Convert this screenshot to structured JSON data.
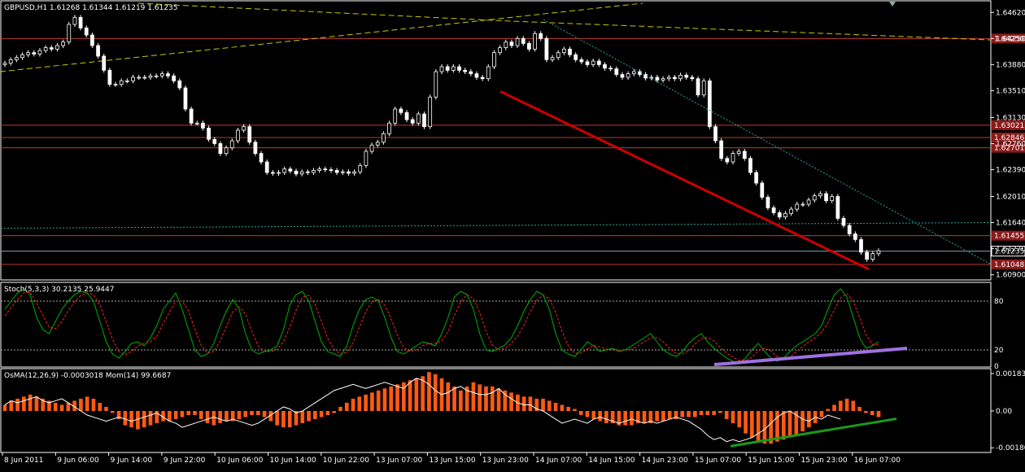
{
  "panels": {
    "main_title": "GBPUSD,H1  1.61268 1.61344 1.61219 1.61235",
    "stoch_title": "Stoch(5,3,3) 30.2135 25.9447",
    "osma_title": "OsMA(12,26,9) -0.0003018  Mom(14) 99.6687"
  },
  "colors": {
    "background": "#000000",
    "frame": "#ffffff",
    "bull_candle": "#ffffff",
    "bear_candle": "#ffffff",
    "horizontal_level": "#c0392b",
    "price_badge": "#8b1a1a",
    "trend_red": "#cc0000",
    "trend_teal": "#26a69a",
    "ma_yellow": "#c8c800",
    "stoch_main": "#00b000",
    "stoch_signal": "#ff2020",
    "stoch_trend": "#a070e0",
    "osma_bars": "#ff5a14",
    "mom_line": "#ffffff",
    "osma_trend": "#1a9a1a"
  },
  "chart_data": [
    {
      "type": "candlestick",
      "title": "GBPUSD,H1",
      "ohlc_header": [
        1.61268,
        1.61344,
        1.61219,
        1.61235
      ],
      "ylim": [
        1.6085,
        1.6475
      ],
      "y_ticks": [
        "1.64620",
        "1.64250",
        "1.63880",
        "1.63510",
        "1.63130",
        "1.62760",
        "1.62390",
        "1.62010",
        "1.61640",
        "1.61270",
        "1.60900"
      ],
      "price_level_badges": [
        "1.64250",
        "1.63021",
        "1.62846",
        "1.62701",
        "1.61455",
        "1.61235",
        "1.61048"
      ],
      "x_tick_labels": [
        "8 Jun 2011",
        "9 Jun 06:00",
        "9 Jun 14:00",
        "9 Jun 22:00",
        "10 Jun 06:00",
        "10 Jun 14:00",
        "10 Jun 22:00",
        "13 Jun 07:00",
        "13 Jun 15:00",
        "13 Jun 23:00",
        "14 Jun 07:00",
        "14 Jun 15:00",
        "14 Jun 23:00",
        "15 Jun 07:00",
        "15 Jun 15:00",
        "15 Jun 23:00",
        "16 Jun 07:00"
      ],
      "close_series": [
        1.639,
        1.6395,
        1.6398,
        1.6402,
        1.6405,
        1.6403,
        1.6408,
        1.6412,
        1.641,
        1.6415,
        1.642,
        1.6445,
        1.6455,
        1.644,
        1.643,
        1.6415,
        1.64,
        1.638,
        1.636,
        1.636,
        1.6365,
        1.6365,
        1.637,
        1.637,
        1.637,
        1.6372,
        1.6372,
        1.6375,
        1.6372,
        1.6365,
        1.6355,
        1.6325,
        1.6305,
        1.6305,
        1.6298,
        1.6282,
        1.6276,
        1.6262,
        1.627,
        1.628,
        1.6295,
        1.63,
        1.6278,
        1.6262,
        1.625,
        1.6235,
        1.6234,
        1.6235,
        1.624,
        1.6237,
        1.6233,
        1.6236,
        1.6235,
        1.6238,
        1.624,
        1.6239,
        1.6238,
        1.6235,
        1.6236,
        1.6234,
        1.6236,
        1.6245,
        1.6265,
        1.6274,
        1.6278,
        1.629,
        1.6305,
        1.6325,
        1.632,
        1.631,
        1.6305,
        1.6318,
        1.63,
        1.6342,
        1.6378,
        1.6385,
        1.638,
        1.6385,
        1.638,
        1.6378,
        1.6375,
        1.637,
        1.6368,
        1.6385,
        1.6405,
        1.6412,
        1.642,
        1.6415,
        1.6425,
        1.6418,
        1.641,
        1.6432,
        1.6425,
        1.6395,
        1.6398,
        1.6405,
        1.641,
        1.6402,
        1.6395,
        1.6392,
        1.6388,
        1.6393,
        1.6388,
        1.6383,
        1.6382,
        1.6374,
        1.637,
        1.6375,
        1.6378,
        1.6374,
        1.6369,
        1.637,
        1.6366,
        1.6368,
        1.637,
        1.6368,
        1.6373,
        1.637,
        1.6368,
        1.6345,
        1.6365,
        1.63,
        1.628,
        1.6255,
        1.625,
        1.6262,
        1.6265,
        1.6255,
        1.6235,
        1.622,
        1.62,
        1.6185,
        1.6178,
        1.6172,
        1.6177,
        1.6183,
        1.619,
        1.619,
        1.6196,
        1.6202,
        1.6205,
        1.6195,
        1.6201,
        1.617,
        1.616,
        1.6148,
        1.614,
        1.6122,
        1.6112,
        1.612,
        1.6124
      ]
    },
    {
      "type": "line",
      "title": "Stoch(5,3,3)",
      "values_header": [
        30.2135,
        25.9447
      ],
      "ylim": [
        0,
        100
      ],
      "y_ticks": [
        "80",
        "20",
        "0"
      ],
      "levels": [
        80,
        20
      ],
      "series": [
        {
          "name": "Stoch main",
          "values": [
            70,
            80,
            90,
            95,
            88,
            60,
            45,
            40,
            55,
            70,
            80,
            88,
            92,
            90,
            80,
            55,
            30,
            15,
            10,
            18,
            28,
            30,
            25,
            35,
            50,
            70,
            80,
            90,
            70,
            45,
            20,
            12,
            15,
            28,
            50,
            68,
            82,
            70,
            40,
            20,
            15,
            18,
            20,
            25,
            45,
            75,
            88,
            92,
            80,
            55,
            30,
            18,
            15,
            12,
            25,
            50,
            70,
            82,
            85,
            80,
            60,
            35,
            18,
            15,
            20,
            25,
            30,
            28,
            25,
            40,
            60,
            85,
            92,
            88,
            70,
            40,
            20,
            18,
            22,
            26,
            35,
            50,
            68,
            82,
            92,
            88,
            70,
            40,
            20,
            15,
            12,
            20,
            30,
            25,
            18,
            20,
            22,
            18,
            20,
            25,
            30,
            35,
            40,
            30,
            20,
            15,
            12,
            18,
            28,
            35,
            40,
            30,
            22,
            16,
            10,
            6,
            4,
            10,
            20,
            28,
            18,
            10,
            6,
            10,
            18,
            25,
            30,
            35,
            40,
            50,
            70,
            88,
            95,
            85,
            60,
            35,
            22,
            25,
            30
          ]
        },
        {
          "name": "Stoch signal",
          "values": [
            62,
            72,
            82,
            90,
            91,
            78,
            62,
            48,
            46,
            55,
            68,
            79,
            87,
            90,
            88,
            75,
            55,
            33,
            18,
            14,
            18,
            25,
            28,
            30,
            37,
            52,
            67,
            80,
            80,
            68,
            45,
            26,
            16,
            18,
            31,
            49,
            67,
            73,
            64,
            43,
            25,
            18,
            18,
            21,
            30,
            48,
            69,
            85,
            87,
            76,
            55,
            34,
            21,
            15,
            17,
            29,
            48,
            67,
            79,
            82,
            75,
            58,
            38,
            23,
            18,
            20,
            25,
            28,
            28,
            31,
            42,
            62,
            79,
            88,
            83,
            66,
            43,
            26,
            20,
            22,
            28,
            37,
            51,
            67,
            81,
            87,
            83,
            66,
            43,
            25,
            16,
            16,
            21,
            25,
            24,
            21,
            20,
            20,
            20,
            21,
            25,
            30,
            35,
            35,
            30,
            22,
            16,
            15,
            19,
            27,
            34,
            35,
            31,
            23,
            16,
            11,
            7,
            7,
            11,
            19,
            22,
            19,
            12,
            9,
            11,
            18,
            24,
            30,
            35,
            42,
            53,
            69,
            84,
            89,
            80,
            60,
            39,
            27,
            26
          ]
        }
      ]
    },
    {
      "type": "bar",
      "title": "OsMA(12,26,9)",
      "values_header": [
        -0.0003018,
        99.6687
      ],
      "ylim": [
        -0.00195,
        0.00195
      ],
      "y_ticks": [
        "0.00183",
        "0.00",
        "-0.00180"
      ],
      "series": [
        {
          "name": "OsMA",
          "values": [
            0.0003,
            0.0005,
            0.0006,
            0.0007,
            0.0008,
            0.0007,
            0.0006,
            0.0005,
            0.0004,
            0.0003,
            0.0004,
            0.0005,
            0.0006,
            0.0007,
            0.0006,
            0.0004,
            0.0002,
            -0.0001,
            -0.0004,
            -0.0007,
            -0.0008,
            -0.0009,
            -0.0008,
            -0.0007,
            -0.0006,
            -0.0005,
            -0.0005,
            -0.0004,
            -0.0003,
            -0.0002,
            -0.0002,
            -0.0004,
            -0.0006,
            -0.0007,
            -0.0006,
            -0.0005,
            -0.0005,
            -0.0004,
            -0.0003,
            -0.0002,
            -0.0002,
            -0.0003,
            -0.0005,
            -0.0007,
            -0.0008,
            -0.0008,
            -0.0007,
            -0.0006,
            -0.0005,
            -0.0004,
            -0.0003,
            -0.0002,
            -0.0001,
            0.0002,
            0.0004,
            0.0006,
            0.0007,
            0.0008,
            0.0009,
            0.001,
            0.0011,
            0.0012,
            0.0013,
            0.0014,
            0.0015,
            0.0016,
            0.0017,
            0.0019,
            0.0018,
            0.0016,
            0.0014,
            0.0012,
            0.001,
            0.0012,
            0.0014,
            0.0013,
            0.0012,
            0.0012,
            0.0011,
            0.001,
            0.0009,
            0.0008,
            0.0007,
            0.0007,
            0.0006,
            0.0006,
            0.0005,
            0.0004,
            0.0003,
            0.0002,
            0.0001,
            -0.0002,
            -0.0003,
            -0.0004,
            -0.0005,
            -0.0006,
            -0.0006,
            -0.0007,
            -0.0007,
            -0.0007,
            -0.0006,
            -0.0006,
            -0.0006,
            -0.0005,
            -0.0005,
            -0.0004,
            -0.0004,
            -0.0003,
            -0.0003,
            -0.0003,
            -0.0002,
            -0.0002,
            -0.0002,
            -0.0001,
            -0.0004,
            -0.0006,
            -0.0008,
            -0.0011,
            -0.0013,
            -0.0015,
            -0.0016,
            -0.0016,
            -0.0015,
            -0.0014,
            -0.0013,
            -0.0012,
            -0.001,
            -0.0008,
            -0.0006,
            -0.0003,
            0.0001,
            0.0003,
            0.0005,
            0.0006,
            0.0005,
            0.0002,
            -0.0001,
            -0.0002,
            -0.0003
          ]
        },
        {
          "name": "Mom",
          "values": [
            0.0003,
            0.0005,
            0.0004,
            0.0005,
            0.0006,
            0.0007,
            0.0005,
            0.0004,
            0.0005,
            0.0006,
            0.0004,
            0.0002,
            0.0,
            -0.0002,
            -0.0003,
            -0.0004,
            -0.0005,
            -0.0004,
            -0.0003,
            -0.0004,
            -0.0005,
            -0.0004,
            -0.0003,
            -0.0002,
            -0.0001,
            -0.0003,
            -0.0005,
            -0.0006,
            -0.0008,
            -0.0007,
            -0.0006,
            -0.0005,
            -0.0004,
            -0.0003,
            -0.0004,
            -0.0005,
            -0.0004,
            -0.0005,
            -0.0006,
            -0.0007,
            -0.0006,
            -0.0004,
            -0.0002,
            0.0,
            0.0002,
            0.0001,
            -0.0001,
            0.0,
            0.0002,
            0.0004,
            0.0006,
            0.0008,
            0.001,
            0.0011,
            0.0012,
            0.0013,
            0.0012,
            0.0011,
            0.0012,
            0.0013,
            0.0014,
            0.0013,
            0.0012,
            0.0011,
            0.0014,
            0.0016,
            0.0015,
            0.0013,
            0.001,
            0.0008,
            0.0009,
            0.0011,
            0.0012,
            0.001,
            0.0009,
            0.0008,
            0.0008,
            0.0009,
            0.0011,
            0.0008,
            0.0006,
            0.0004,
            0.0003,
            0.0003,
            0.0001,
            0.0,
            -0.0002,
            -0.0004,
            -0.0006,
            -0.0005,
            -0.0004,
            -0.0005,
            -0.0006,
            -0.0004,
            -0.0003,
            -0.0004,
            -0.0005,
            -0.0006,
            -0.0005,
            -0.0004,
            -0.0005,
            -0.0006,
            -0.0005,
            -0.0006,
            -0.0005,
            -0.0004,
            -0.0003,
            -0.0004,
            -0.0005,
            -0.0007,
            -0.0009,
            -0.0012,
            -0.0014,
            -0.0013,
            -0.0015,
            -0.0014,
            -0.0015,
            -0.0014,
            -0.0013,
            -0.0011,
            -0.0009,
            -0.0006,
            -0.0003,
            -0.0001,
            0.0,
            -0.0002,
            -0.0004,
            -0.0005,
            -0.0003,
            -0.0004,
            -0.0002,
            -0.0003,
            -0.0004
          ]
        }
      ]
    }
  ]
}
